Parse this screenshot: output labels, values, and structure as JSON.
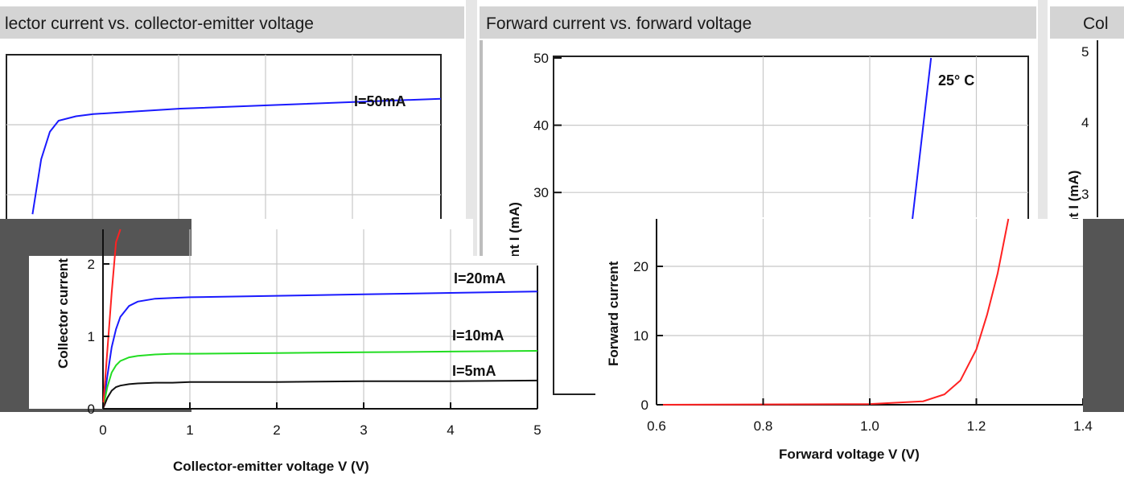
{
  "panels": {
    "left_title": "lector current vs. collector-emitter voltage",
    "mid_title": "Forward current vs. forward voltage",
    "right_title": "Col"
  },
  "chart_data": [
    {
      "type": "line",
      "title": "lector current vs. collector-emitter voltage",
      "xlabel": "Collector-emitter voltage V (V)",
      "ylabel": "Collector current",
      "xlim": [
        0,
        5
      ],
      "ylim": [
        0,
        2
      ],
      "xticks": [
        "0",
        "1",
        "2",
        "3",
        "4",
        "5"
      ],
      "yticks": [
        "0",
        "1",
        "2"
      ],
      "grid": true,
      "annotations": [
        "I=20mA",
        "I=10mA",
        "I=5mA"
      ],
      "series": [
        {
          "name": "I=20mA",
          "color": "#1a1aff",
          "x": [
            0,
            0.05,
            0.1,
            0.15,
            0.2,
            0.3,
            0.4,
            0.6,
            0.8,
            1,
            2,
            3,
            4,
            5
          ],
          "y": [
            0,
            0.45,
            0.85,
            1.1,
            1.27,
            1.42,
            1.48,
            1.52,
            1.53,
            1.54,
            1.56,
            1.58,
            1.6,
            1.62
          ]
        },
        {
          "name": "I=10mA",
          "color": "#22dd22",
          "x": [
            0,
            0.05,
            0.1,
            0.15,
            0.2,
            0.3,
            0.4,
            0.6,
            0.8,
            1,
            2,
            3,
            4,
            5
          ],
          "y": [
            0,
            0.3,
            0.5,
            0.6,
            0.66,
            0.71,
            0.73,
            0.75,
            0.76,
            0.76,
            0.77,
            0.78,
            0.79,
            0.8
          ]
        },
        {
          "name": "I=5mA",
          "color": "#111111",
          "x": [
            0,
            0.05,
            0.1,
            0.15,
            0.2,
            0.3,
            0.4,
            0.6,
            0.8,
            1,
            2,
            3,
            4,
            5
          ],
          "y": [
            0,
            0.15,
            0.25,
            0.3,
            0.32,
            0.34,
            0.35,
            0.36,
            0.36,
            0.37,
            0.37,
            0.38,
            0.38,
            0.39
          ]
        },
        {
          "name": "",
          "color": "#ff2222",
          "x": [
            0,
            0.05,
            0.1,
            0.15,
            0.2
          ],
          "y": [
            0,
            0.8,
            1.6,
            2.3,
            2.6
          ]
        }
      ]
    },
    {
      "type": "line",
      "title": "lector current vs. collector-emitter voltage",
      "xlim": [
        0,
        5
      ],
      "ylim": [
        0,
        5
      ],
      "annotations": [
        "I=50mA"
      ],
      "series": [
        {
          "name": "I=50mA",
          "color": "#1a1aff",
          "x": [
            0.3,
            0.35,
            0.4,
            0.5,
            0.6,
            0.8,
            1,
            1.5,
            2,
            3,
            4,
            5
          ],
          "y": [
            2.1,
            2.6,
            3.1,
            3.6,
            3.8,
            3.88,
            3.92,
            3.97,
            4.02,
            4.08,
            4.14,
            4.2
          ]
        }
      ]
    },
    {
      "type": "line",
      "title": "Forward current vs. forward voltage",
      "xlabel": "Forward voltage V (V)",
      "ylabel": "Forward current",
      "xlim": [
        0.6,
        1.4
      ],
      "ylim": [
        0,
        50
      ],
      "xticks": [
        "0.6",
        "0.8",
        "1.0",
        "1.2",
        "1.4"
      ],
      "yticks": [
        "0",
        "10",
        "20",
        "30",
        "40",
        "50"
      ],
      "grid": true,
      "annotations": [
        "25° C"
      ],
      "series": [
        {
          "name": "25° C",
          "color": "#1a1aff",
          "x": [
            1.08,
            1.115
          ],
          "y": [
            26,
            50
          ]
        },
        {
          "name": "",
          "color": "#ff2222",
          "x": [
            0.6,
            1.0,
            1.1,
            1.14,
            1.17,
            1.2,
            1.22,
            1.24,
            1.26
          ],
          "y": [
            0,
            0.1,
            0.5,
            1.5,
            3.5,
            8,
            13,
            19,
            27
          ]
        }
      ]
    },
    {
      "type": "line",
      "title": "Col",
      "ylabel": "ent I (mA)",
      "yticks": [
        "5",
        "4",
        "3"
      ]
    }
  ]
}
